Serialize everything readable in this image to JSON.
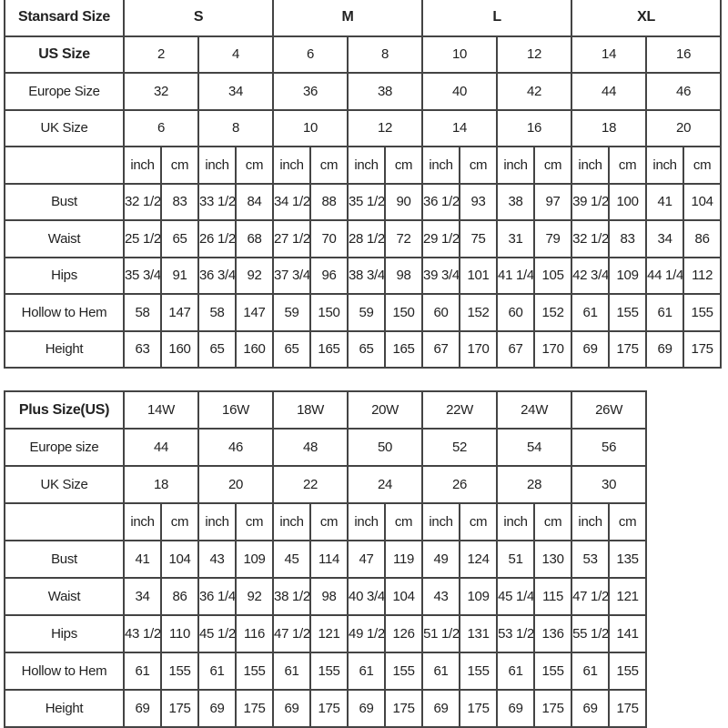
{
  "standard": {
    "header_label": "Stansard Size",
    "groups": [
      "S",
      "M",
      "L",
      "XL"
    ],
    "us_label": "US Size",
    "us": [
      "2",
      "4",
      "6",
      "8",
      "10",
      "12",
      "14",
      "16"
    ],
    "europe_label": "Europe Size",
    "europe": [
      "32",
      "34",
      "36",
      "38",
      "40",
      "42",
      "44",
      "46"
    ],
    "uk_label": "UK Size",
    "uk": [
      "6",
      "8",
      "10",
      "12",
      "14",
      "16",
      "18",
      "20"
    ],
    "unit_inch": "inch",
    "unit_cm": "cm",
    "rows": [
      {
        "label": "Bust",
        "values": [
          "32 1/2",
          "83",
          "33 1/2",
          "84",
          "34 1/2",
          "88",
          "35 1/2",
          "90",
          "36 1/2",
          "93",
          "38",
          "97",
          "39 1/2",
          "100",
          "41",
          "104"
        ]
      },
      {
        "label": "Waist",
        "values": [
          "25 1/2",
          "65",
          "26 1/2",
          "68",
          "27 1/2",
          "70",
          "28 1/2",
          "72",
          "29 1/2",
          "75",
          "31",
          "79",
          "32 1/2",
          "83",
          "34",
          "86"
        ]
      },
      {
        "label": "Hips",
        "values": [
          "35 3/4",
          "91",
          "36 3/4",
          "92",
          "37 3/4",
          "96",
          "38 3/4",
          "98",
          "39 3/4",
          "101",
          "41 1/4",
          "105",
          "42 3/4",
          "109",
          "44 1/4",
          "112"
        ]
      },
      {
        "label": "Hollow to Hem",
        "values": [
          "58",
          "147",
          "58",
          "147",
          "59",
          "150",
          "59",
          "150",
          "60",
          "152",
          "60",
          "152",
          "61",
          "155",
          "61",
          "155"
        ]
      },
      {
        "label": "Height",
        "values": [
          "63",
          "160",
          "65",
          "160",
          "65",
          "165",
          "65",
          "165",
          "67",
          "170",
          "67",
          "170",
          "69",
          "175",
          "69",
          "175"
        ]
      }
    ]
  },
  "plus": {
    "header_label": "Plus Size(US)",
    "us": [
      "14W",
      "16W",
      "18W",
      "20W",
      "22W",
      "24W",
      "26W"
    ],
    "europe_label": "Europe size",
    "europe": [
      "44",
      "46",
      "48",
      "50",
      "52",
      "54",
      "56"
    ],
    "uk_label": "UK Size",
    "uk": [
      "18",
      "20",
      "22",
      "24",
      "26",
      "28",
      "30"
    ],
    "unit_inch": "inch",
    "unit_cm": "cm",
    "rows": [
      {
        "label": "Bust",
        "values": [
          "41",
          "104",
          "43",
          "109",
          "45",
          "114",
          "47",
          "119",
          "49",
          "124",
          "51",
          "130",
          "53",
          "135"
        ]
      },
      {
        "label": "Waist",
        "values": [
          "34",
          "86",
          "36 1/4",
          "92",
          "38 1/2",
          "98",
          "40 3/4",
          "104",
          "43",
          "109",
          "45 1/4",
          "115",
          "47 1/2",
          "121"
        ]
      },
      {
        "label": "Hips",
        "values": [
          "43 1/2",
          "110",
          "45 1/2",
          "116",
          "47 1/2",
          "121",
          "49 1/2",
          "126",
          "51 1/2",
          "131",
          "53 1/2",
          "136",
          "55 1/2",
          "141"
        ]
      },
      {
        "label": "Hollow to Hem",
        "values": [
          "61",
          "155",
          "61",
          "155",
          "61",
          "155",
          "61",
          "155",
          "61",
          "155",
          "61",
          "155",
          "61",
          "155"
        ]
      },
      {
        "label": "Height",
        "values": [
          "69",
          "175",
          "69",
          "175",
          "69",
          "175",
          "69",
          "175",
          "69",
          "175",
          "69",
          "175",
          "69",
          "175"
        ]
      }
    ]
  }
}
